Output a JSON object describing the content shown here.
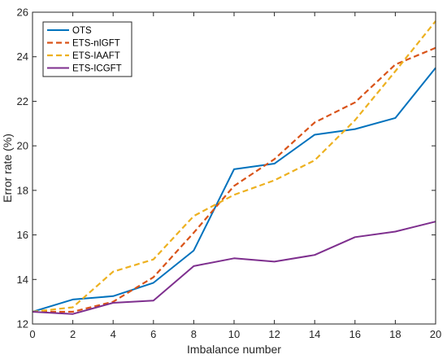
{
  "chart_data": {
    "type": "line",
    "title": "",
    "xlabel": "Imbalance number",
    "ylabel": "Error rate (%)",
    "xlim": [
      0,
      20
    ],
    "ylim": [
      12,
      26
    ],
    "xticks": [
      0,
      2,
      4,
      6,
      8,
      10,
      12,
      14,
      16,
      18,
      20
    ],
    "yticks": [
      12,
      14,
      16,
      18,
      20,
      22,
      24,
      26
    ],
    "x": [
      0,
      2,
      4,
      6,
      8,
      10,
      12,
      14,
      16,
      18,
      20
    ],
    "grid": false,
    "legend_position": "top-left",
    "series": [
      {
        "name": "OTS",
        "color": "#0072BD",
        "dash": "solid",
        "values": [
          12.55,
          13.1,
          13.25,
          13.85,
          15.3,
          18.95,
          19.2,
          20.5,
          20.75,
          21.25,
          23.5
        ]
      },
      {
        "name": "ETS-nIGFT",
        "color": "#D95319",
        "dash": "dashed",
        "values": [
          12.55,
          12.55,
          13.0,
          14.1,
          16.1,
          18.2,
          19.4,
          21.05,
          21.95,
          23.65,
          24.4
        ]
      },
      {
        "name": "ETS-IAAFT",
        "color": "#EDB120",
        "dash": "dashed",
        "values": [
          12.55,
          12.75,
          14.35,
          14.9,
          16.85,
          17.8,
          18.45,
          19.35,
          21.15,
          23.35,
          25.6
        ]
      },
      {
        "name": "ETS-ICGFT",
        "color": "#7E2F8E",
        "dash": "solid",
        "values": [
          12.55,
          12.45,
          12.95,
          13.05,
          14.6,
          14.95,
          14.8,
          15.1,
          15.9,
          16.15,
          16.6
        ]
      }
    ]
  }
}
